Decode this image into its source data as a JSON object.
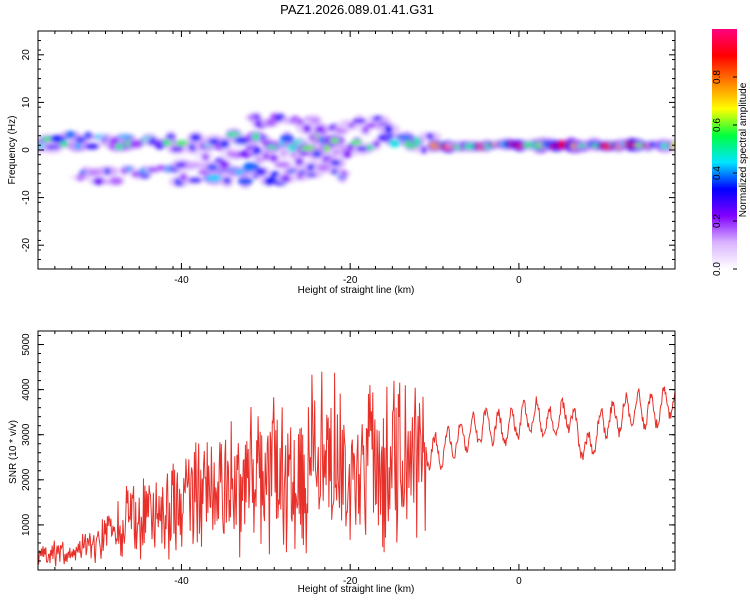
{
  "title": "PAZ1.2026.089.01.41.G31",
  "chart_data": [
    {
      "type": "heatmap",
      "title": "PAZ1.2026.089.01.41.G31",
      "xlabel": "Height of straight line (km)",
      "ylabel": "Frequency (Hz)",
      "xlim": [
        -57,
        18.5
      ],
      "ylim": [
        -25,
        25
      ],
      "xticks": [
        -40,
        -20,
        0
      ],
      "yticks": [
        -20,
        -10,
        0,
        10,
        20
      ],
      "xtick_labels": [
        "-40",
        "-20",
        "0"
      ],
      "ytick_labels": [
        "-20",
        "-10",
        "0",
        "10",
        "20"
      ],
      "colorbar": {
        "label": "Normalized spectral amplitude",
        "range": [
          0,
          1
        ],
        "ticks": [
          "0.0",
          "0.2",
          "0.4",
          "0.6",
          "0.8"
        ],
        "colors": [
          "#ffffff",
          "#d9b3ff",
          "#8000ff",
          "#0000ff",
          "#00e5ff",
          "#00ff40",
          "#ffff00",
          "#ff8000",
          "#ff0000",
          "#ff0080"
        ]
      },
      "tracks": [
        {
          "x_start": -57,
          "x_end": -10,
          "freq": 1.5,
          "amp": 0.55
        },
        {
          "x_start": -10,
          "x_end": 18.5,
          "freq": 1.0,
          "amp": 0.85
        },
        {
          "x_start": -52,
          "x_end": -20,
          "freq": -5,
          "amp": 0.4
        },
        {
          "x_start": -32,
          "x_end": -15,
          "freq": 6,
          "amp": 0.3
        },
        {
          "x_start": -40,
          "x_end": -20,
          "freq": -2,
          "amp": 0.35
        }
      ]
    },
    {
      "type": "line",
      "xlabel": "Height of straight line (km)",
      "ylabel": "SNR (10 * v/v)",
      "xlim": [
        -57,
        18.5
      ],
      "ylim": [
        0,
        5300
      ],
      "xticks": [
        -40,
        -20,
        0
      ],
      "yticks": [
        1000,
        2000,
        3000,
        4000,
        5000
      ],
      "xtick_labels": [
        "-40",
        "-20",
        "0"
      ],
      "ytick_labels": [
        "1000",
        "2000",
        "3000",
        "4000",
        "5000"
      ],
      "series_color": "#e8302a",
      "series": [
        {
          "name": "SNR",
          "x": [
            -57,
            -55,
            -53,
            -51,
            -49,
            -47,
            -45,
            -43,
            -41,
            -39,
            -37,
            -35,
            -33,
            -31,
            -29,
            -27,
            -25,
            -23,
            -21,
            -19,
            -17,
            -15,
            -13.5,
            -12,
            -11,
            -10,
            -8,
            -6,
            -4,
            -2,
            0,
            2,
            4,
            6,
            8,
            10,
            12,
            14,
            16,
            18.5
          ],
          "y": [
            300,
            400,
            350,
            500,
            800,
            1000,
            1100,
            1200,
            1300,
            1500,
            1600,
            1700,
            1900,
            2000,
            2200,
            2300,
            2400,
            2500,
            2400,
            2200,
            2300,
            2400,
            2500,
            2400,
            2700,
            2600,
            2800,
            3000,
            3200,
            3100,
            3300,
            3400,
            3200,
            3500,
            2600,
            3300,
            3400,
            3600,
            3500,
            3800
          ]
        }
      ]
    }
  ]
}
